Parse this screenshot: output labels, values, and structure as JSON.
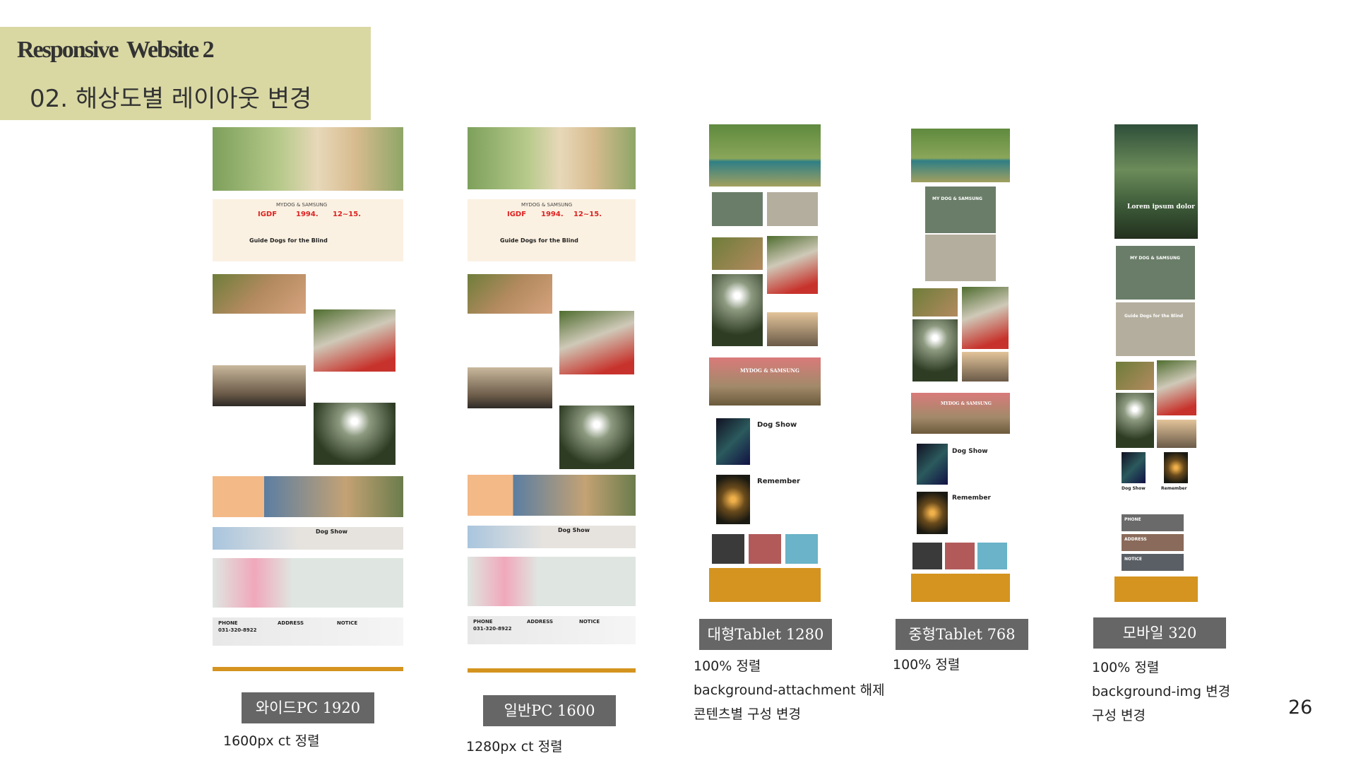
{
  "header": {
    "title": "Responsive  Website 2",
    "subtitle": "02. 해상도별 레이아웃 변경"
  },
  "page_number": "26",
  "layouts": [
    {
      "label": "와이드PC 1920",
      "notes": [
        "1600px ct 정렬"
      ]
    },
    {
      "label": "일반PC 1600",
      "notes": [
        "1280px ct 정렬"
      ]
    },
    {
      "label": "대형Tablet 1280",
      "notes": [
        "100% 정렬",
        "background-attachment 해제",
        "콘텐츠별 구성 변경"
      ]
    },
    {
      "label": "중형Tablet 768",
      "notes": [
        "100% 정렬"
      ]
    },
    {
      "label": "모바일 320",
      "notes": [
        "100% 정렬",
        "background-img 변경",
        "구성 변경"
      ]
    }
  ],
  "thumb_text": {
    "brand": "MYDOG & SAMSUNG",
    "stat1": "IGDF",
    "stat2": "1994.",
    "stat3": "12~15.",
    "guide": "Guide Dogs for the Blind",
    "dog_show": "Dog Show",
    "remember": "Remember",
    "phone": "PHONE",
    "phone_no": "031-320-8922",
    "address": "ADDRESS",
    "notice": "NOTICE",
    "mydog_banner": "MYDOG & SAMSUNG",
    "lorem": "Lorem ipsum dolor",
    "guide_short": "Guide Dogs for the Blind",
    "my_dog": "MY DOG & SAMSUNG"
  },
  "colors": {
    "header_bg": "#d9d8a3",
    "label_bg": "#666666",
    "footer_gold": "#d4941f"
  }
}
